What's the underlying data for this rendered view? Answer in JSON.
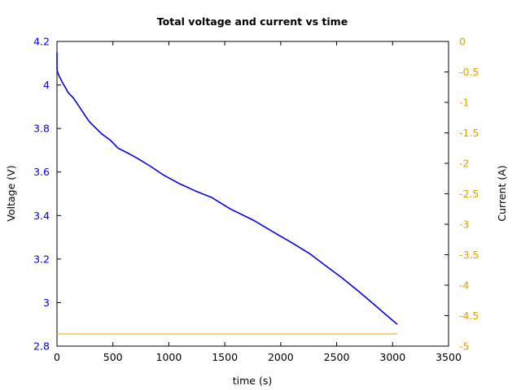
{
  "chart_data": {
    "type": "line",
    "title": "Total voltage and current vs time",
    "xlabel": "time (s)",
    "ylabel": "Voltage (V)",
    "y2label": "Current (A)",
    "xlim": [
      0,
      3500
    ],
    "ylim": [
      2.8,
      4.2
    ],
    "y2lim": [
      -5,
      0
    ],
    "grid": false,
    "legend": null,
    "x_ticks": [
      "0",
      "500",
      "1000",
      "1500",
      "2000",
      "2500",
      "3000",
      "3500"
    ],
    "y_ticks": [
      "2.8",
      "3",
      "3.2",
      "3.4",
      "3.6",
      "3.8",
      "4",
      "4.2"
    ],
    "y2_ticks": [
      "-5",
      "-4.5",
      "-4",
      "-3.5",
      "-3",
      "-2.5",
      "-2",
      "-1.5",
      "-1",
      "-0.5",
      "0"
    ],
    "colors": {
      "voltage": "#0000ee",
      "current": "#e8a000",
      "axis": "#000000"
    },
    "series": [
      {
        "name": "Voltage (V)",
        "axis": "left",
        "x": [
          0,
          0,
          5,
          20,
          50,
          73,
          100,
          146,
          200,
          250,
          291,
          350,
          400,
          480,
          546,
          640,
          728,
          840,
          946,
          1100,
          1250,
          1383,
          1550,
          1750,
          1965,
          2100,
          2256,
          2400,
          2547,
          2700,
          2838,
          2950,
          3042
        ],
        "values": [
          4.15,
          4.07,
          4.06,
          4.04,
          4.01,
          3.99,
          3.965,
          3.94,
          3.9,
          3.86,
          3.83,
          3.8,
          3.775,
          3.745,
          3.71,
          3.685,
          3.66,
          3.625,
          3.588,
          3.545,
          3.51,
          3.483,
          3.43,
          3.38,
          3.315,
          3.275,
          3.226,
          3.17,
          3.114,
          3.05,
          2.99,
          2.94,
          2.9
        ]
      },
      {
        "name": "Current (A)",
        "axis": "right",
        "x": [
          0,
          3042
        ],
        "values": [
          -4.8,
          -4.8
        ]
      }
    ]
  }
}
